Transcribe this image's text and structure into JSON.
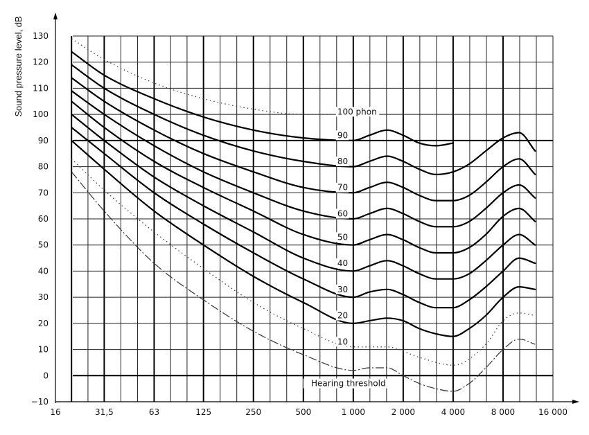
{
  "chart_data": {
    "type": "line",
    "title": "",
    "ylabel": "Sound pressure level, dB",
    "xlabel": "",
    "x_scale": "log",
    "xlim": [
      16,
      16000
    ],
    "ylim": [
      -10,
      130
    ],
    "grid": true,
    "x_tick_values": [
      16,
      31.5,
      63,
      125,
      250,
      500,
      1000,
      2000,
      4000,
      8000,
      16000
    ],
    "x_tick_labels": [
      "16",
      "31,5",
      "63",
      "125",
      "250",
      "500",
      "1 000",
      "2 000",
      "4 000",
      "8 000",
      "16 000"
    ],
    "y_ticks": [
      -10,
      0,
      10,
      20,
      30,
      40,
      50,
      60,
      70,
      80,
      90,
      100,
      110,
      120,
      130
    ],
    "annotations": [
      {
        "text": "Hearing threshold",
        "x": 1000,
        "y": -3
      }
    ],
    "series": [
      {
        "name": "100 phon",
        "style": "dotted",
        "label_x": 1000,
        "label_y": 101,
        "x": [
          20,
          31.5,
          63,
          125,
          250,
          500,
          1000
        ],
        "y": [
          129,
          121,
          112,
          106,
          102,
          100,
          100
        ]
      },
      {
        "name": "90",
        "style": "solid",
        "label_x": 1000,
        "label_y": 92,
        "x": [
          20,
          31.5,
          63,
          125,
          250,
          500,
          1000,
          1250,
          1600,
          2000,
          2500,
          3150,
          4000
        ],
        "y": [
          124,
          115,
          106,
          99,
          94,
          91,
          90,
          92,
          94,
          92,
          89,
          88,
          89
        ]
      },
      {
        "name": "80",
        "style": "solid",
        "label_x": 1000,
        "label_y": 82,
        "x": [
          20,
          31.5,
          63,
          125,
          250,
          500,
          1000,
          1250,
          1600,
          2000,
          2500,
          3150,
          4000,
          5000,
          6300,
          8000,
          10000,
          12500
        ],
        "y": [
          119,
          110,
          100,
          92,
          86,
          82,
          80,
          82,
          84,
          82,
          79,
          77,
          78,
          81,
          86,
          91,
          93,
          86
        ]
      },
      {
        "name": "70",
        "style": "solid",
        "label_x": 1000,
        "label_y": 72,
        "x": [
          20,
          31.5,
          63,
          125,
          250,
          500,
          1000,
          1250,
          1600,
          2000,
          2500,
          3150,
          4000,
          5000,
          6300,
          8000,
          10000,
          12500
        ],
        "y": [
          114,
          105,
          94,
          85,
          78,
          72,
          70,
          72,
          74,
          72,
          69,
          67,
          67,
          69,
          74,
          80,
          83,
          77
        ]
      },
      {
        "name": "60",
        "style": "solid",
        "label_x": 1000,
        "label_y": 62,
        "x": [
          20,
          31.5,
          63,
          125,
          250,
          500,
          1000,
          1250,
          1600,
          2000,
          2500,
          3150,
          4000,
          5000,
          6300,
          8000,
          10000,
          12500
        ],
        "y": [
          109,
          100,
          88,
          78,
          70,
          63,
          60,
          62,
          64,
          62,
          59,
          57,
          57,
          59,
          64,
          70,
          73,
          68
        ]
      },
      {
        "name": "50",
        "style": "solid",
        "label_x": 1000,
        "label_y": 53,
        "x": [
          20,
          31.5,
          63,
          125,
          250,
          500,
          1000,
          1250,
          1600,
          2000,
          2500,
          3150,
          4000,
          5000,
          6300,
          8000,
          10000,
          12500
        ],
        "y": [
          105,
          95,
          82,
          72,
          63,
          54,
          50,
          52,
          54,
          52,
          49,
          47,
          47,
          49,
          54,
          61,
          64,
          59
        ]
      },
      {
        "name": "40",
        "style": "solid",
        "label_x": 1000,
        "label_y": 43,
        "x": [
          20,
          31.5,
          63,
          125,
          250,
          500,
          1000,
          1250,
          1600,
          2000,
          2500,
          3150,
          4000,
          5000,
          6300,
          8000,
          10000,
          12500
        ],
        "y": [
          100,
          90,
          76,
          65,
          55,
          45,
          40,
          42,
          44,
          42,
          39,
          37,
          37,
          39,
          44,
          50,
          54,
          50
        ]
      },
      {
        "name": "30",
        "style": "solid",
        "label_x": 1000,
        "label_y": 33,
        "x": [
          20,
          31.5,
          63,
          125,
          250,
          500,
          1000,
          1250,
          1600,
          2000,
          2500,
          3150,
          4000,
          5000,
          6300,
          8000,
          10000,
          12500
        ],
        "y": [
          95,
          85,
          70,
          58,
          47,
          37,
          30,
          32,
          33,
          31,
          28,
          26,
          26,
          29,
          34,
          40,
          45,
          43
        ]
      },
      {
        "name": "20",
        "style": "solid",
        "label_x": 1000,
        "label_y": 23,
        "x": [
          20,
          31.5,
          63,
          125,
          250,
          500,
          1000,
          1250,
          1600,
          2000,
          2500,
          3150,
          4000,
          5000,
          6300,
          8000,
          10000,
          12500
        ],
        "y": [
          90,
          79,
          63,
          50,
          38,
          28,
          20,
          21,
          22,
          21,
          18,
          16,
          15,
          18,
          23,
          30,
          34,
          33
        ]
      },
      {
        "name": "10",
        "style": "dotted",
        "label_x": 1000,
        "label_y": 13,
        "x": [
          20,
          31.5,
          63,
          125,
          250,
          500,
          1000,
          1600,
          2500,
          4000,
          6300,
          8000,
          10000,
          12500
        ],
        "y": [
          83,
          71,
          55,
          41,
          28,
          18,
          11,
          11,
          7,
          4,
          12,
          21,
          24,
          23
        ]
      },
      {
        "name": "Hearing threshold",
        "style": "dashed",
        "label_x": null,
        "label_y": null,
        "x": [
          20,
          31.5,
          63,
          125,
          250,
          500,
          1000,
          1250,
          1600,
          2000,
          2500,
          3150,
          4000,
          5000,
          6300,
          8000,
          10000,
          12500
        ],
        "y": [
          78,
          63,
          43,
          29,
          17,
          8,
          2,
          3,
          3,
          0,
          -3,
          -5,
          -6,
          -3,
          3,
          10,
          14,
          12
        ]
      }
    ]
  }
}
